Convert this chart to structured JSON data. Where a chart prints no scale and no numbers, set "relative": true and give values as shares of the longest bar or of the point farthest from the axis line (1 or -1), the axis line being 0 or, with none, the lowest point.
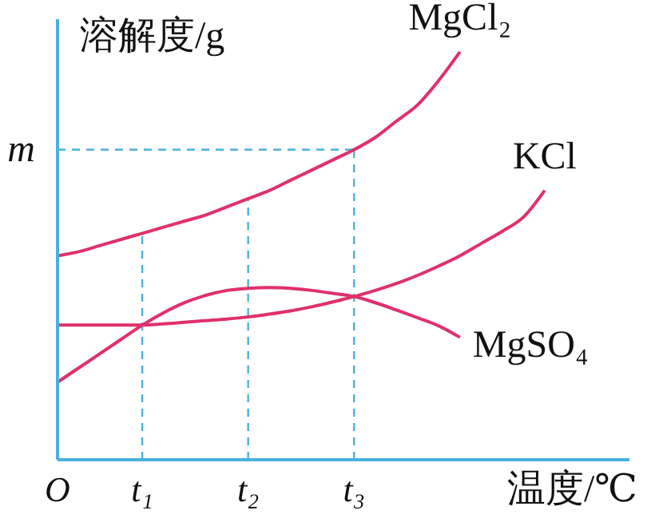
{
  "chart_data": {
    "type": "line",
    "relative": true,
    "ylabel": "溶解度/g",
    "xlabel": "温度/℃",
    "categories": [
      "O",
      null,
      null,
      null,
      "t₁",
      null,
      null,
      null,
      null,
      "t₂",
      null,
      null,
      null,
      null,
      "t₃",
      null,
      null,
      null,
      null,
      null,
      null,
      null,
      null,
      null,
      null,
      null,
      null,
      null
    ],
    "series": [
      {
        "name": "MgCl₂",
        "color": "#e0306a",
        "values": [
          0.5,
          0.51,
          0.525,
          0.54,
          0.555,
          0.57,
          0.585,
          0.6,
          0.62,
          0.64,
          0.66,
          0.685,
          0.71,
          0.735,
          0.76,
          0.79,
          0.83,
          0.87,
          0.93,
          1.0,
          null,
          null,
          null,
          null,
          null,
          null,
          null,
          null
        ]
      },
      {
        "name": "KCl",
        "color": "#e0306a",
        "values": [
          0.33,
          0.33,
          0.33,
          0.33,
          0.33,
          0.333,
          0.337,
          0.341,
          0.345,
          0.35,
          0.357,
          0.365,
          0.375,
          0.387,
          0.4,
          0.415,
          0.432,
          0.452,
          0.475,
          0.5,
          0.53,
          0.56,
          0.595,
          0.66,
          null,
          null,
          null,
          null
        ]
      },
      {
        "name": "MgSO₄",
        "color": "#e0306a",
        "values": [
          0.19,
          0.225,
          0.26,
          0.295,
          0.33,
          0.36,
          0.385,
          0.403,
          0.415,
          0.42,
          0.422,
          0.42,
          0.415,
          0.408,
          0.4,
          0.385,
          0.367,
          0.348,
          0.328,
          0.3,
          null,
          null,
          null,
          null,
          null,
          null,
          null,
          null
        ]
      }
    ],
    "ref_lines": [
      {
        "axis": "y",
        "value": 0.76,
        "label": "m",
        "color": "#4ab0e0",
        "line_style": "dashed"
      },
      {
        "axis": "x",
        "value": "t₁",
        "label": null,
        "color": "#4ab0e0",
        "line_style": "dashed"
      },
      {
        "axis": "x",
        "value": "t₂",
        "label": null,
        "color": "#4ab0e0",
        "line_style": "dashed"
      },
      {
        "axis": "x",
        "value": "t₃",
        "label": null,
        "color": "#4ab0e0",
        "line_style": "dashed"
      }
    ],
    "marker": "none",
    "line_style": "solid",
    "grid": false,
    "legend": false
  }
}
